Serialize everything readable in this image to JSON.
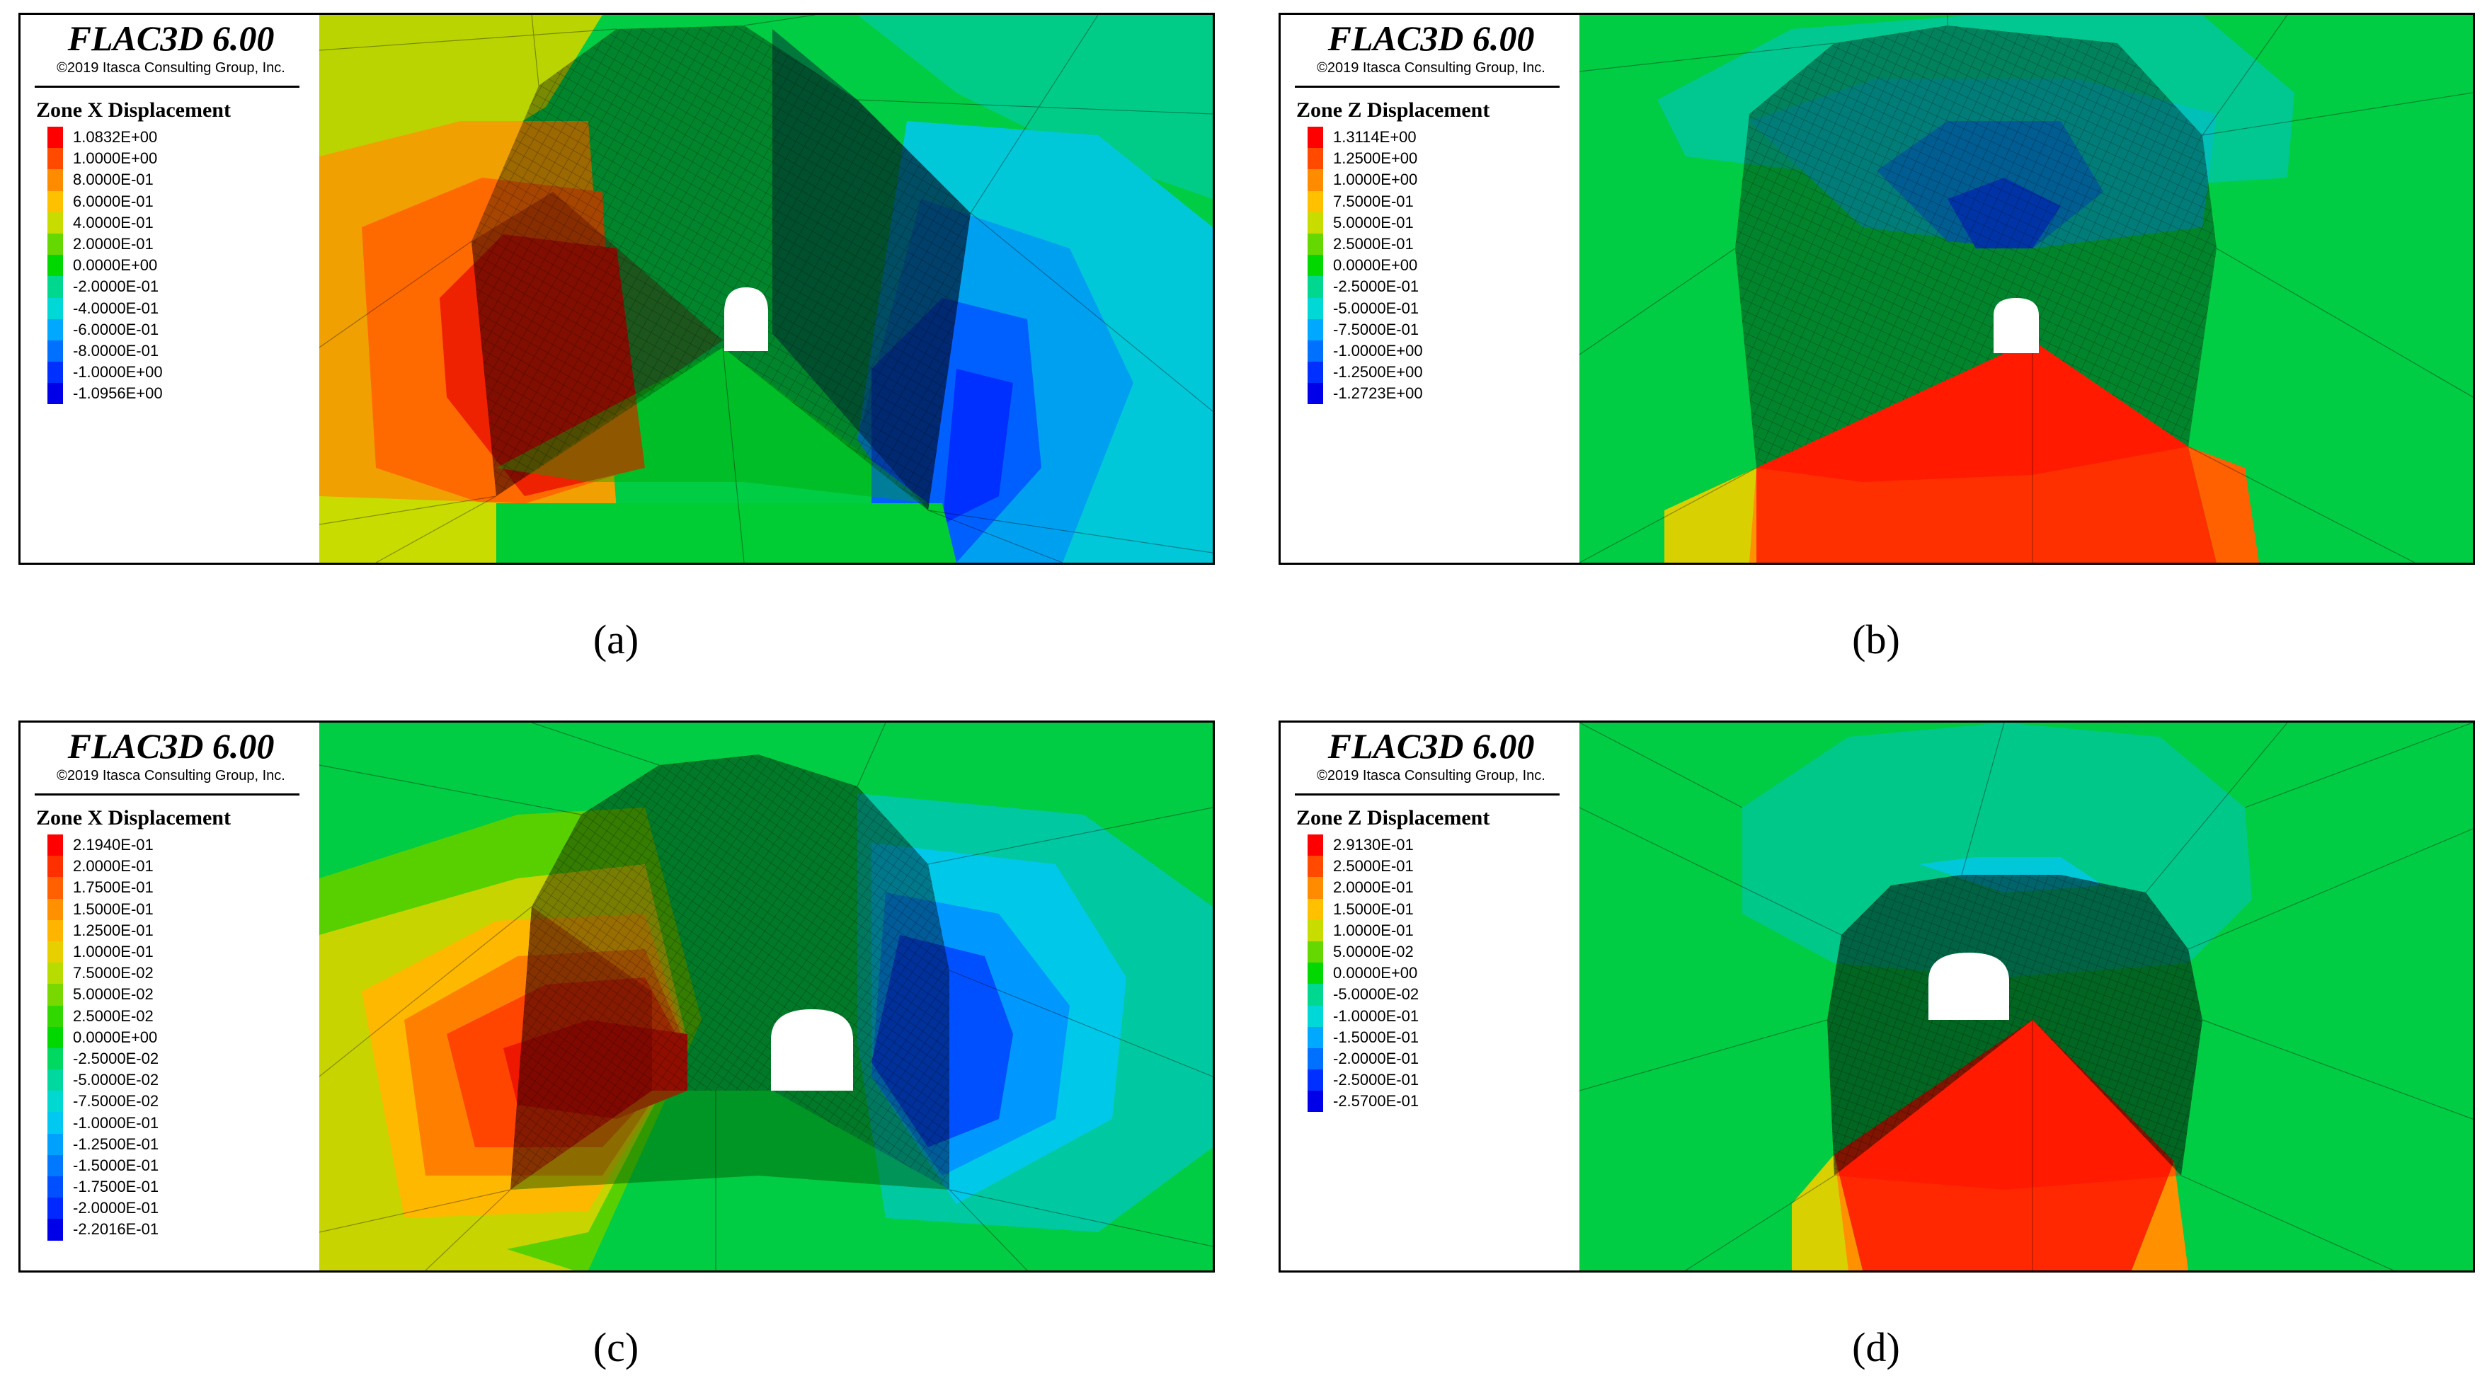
{
  "software": "FLAC3D 6.00",
  "copyright": "©2019 Itasca Consulting Group, Inc.",
  "panels": [
    {
      "caption": "(a)",
      "legend_title": "Zone X Displacement",
      "entries": [
        {
          "value": "1.0832E+00",
          "color": "#ff0000"
        },
        {
          "value": "1.0000E+00",
          "color": "#ff4a00"
        },
        {
          "value": "8.0000E-01",
          "color": "#ff8c00"
        },
        {
          "value": "6.0000E-01",
          "color": "#ffc000"
        },
        {
          "value": "4.0000E-01",
          "color": "#c8dc00"
        },
        {
          "value": "2.0000E-01",
          "color": "#64d800"
        },
        {
          "value": "0.0000E+00",
          "color": "#00d800"
        },
        {
          "value": "-2.0000E-01",
          "color": "#00d890"
        },
        {
          "value": "-4.0000E-01",
          "color": "#00d8d8"
        },
        {
          "value": "-6.0000E-01",
          "color": "#00a8ff"
        },
        {
          "value": "-8.0000E-01",
          "color": "#0070ff"
        },
        {
          "value": "-1.0000E+00",
          "color": "#0030ff"
        },
        {
          "value": "-1.0956E+00",
          "color": "#0000e8"
        }
      ]
    },
    {
      "caption": "(b)",
      "legend_title": "Zone Z Displacement",
      "entries": [
        {
          "value": "1.3114E+00",
          "color": "#ff0000"
        },
        {
          "value": "1.2500E+00",
          "color": "#ff4a00"
        },
        {
          "value": "1.0000E+00",
          "color": "#ff8c00"
        },
        {
          "value": "7.5000E-01",
          "color": "#ffc000"
        },
        {
          "value": "5.0000E-01",
          "color": "#c8dc00"
        },
        {
          "value": "2.5000E-01",
          "color": "#64d800"
        },
        {
          "value": "0.0000E+00",
          "color": "#00d800"
        },
        {
          "value": "-2.5000E-01",
          "color": "#00d890"
        },
        {
          "value": "-5.0000E-01",
          "color": "#00d8d8"
        },
        {
          "value": "-7.5000E-01",
          "color": "#00a8ff"
        },
        {
          "value": "-1.0000E+00",
          "color": "#0070ff"
        },
        {
          "value": "-1.2500E+00",
          "color": "#0030ff"
        },
        {
          "value": "-1.2723E+00",
          "color": "#0000e8"
        }
      ]
    },
    {
      "caption": "(c)",
      "legend_title": "Zone X Displacement",
      "entries": [
        {
          "value": "2.1940E-01",
          "color": "#ff0000"
        },
        {
          "value": "2.0000E-01",
          "color": "#ff3000"
        },
        {
          "value": "1.7500E-01",
          "color": "#ff6000"
        },
        {
          "value": "1.5000E-01",
          "color": "#ff9000"
        },
        {
          "value": "1.2500E-01",
          "color": "#ffb400"
        },
        {
          "value": "1.0000E-01",
          "color": "#e8d000"
        },
        {
          "value": "7.5000E-02",
          "color": "#b8dc00"
        },
        {
          "value": "5.0000E-02",
          "color": "#78d800"
        },
        {
          "value": "2.5000E-02",
          "color": "#30d800"
        },
        {
          "value": "0.0000E+00",
          "color": "#00d800"
        },
        {
          "value": "-2.5000E-02",
          "color": "#00d860"
        },
        {
          "value": "-5.0000E-02",
          "color": "#00d8a0"
        },
        {
          "value": "-7.5000E-02",
          "color": "#00d8d0"
        },
        {
          "value": "-1.0000E-01",
          "color": "#00c8f0"
        },
        {
          "value": "-1.2500E-01",
          "color": "#00a0ff"
        },
        {
          "value": "-1.5000E-01",
          "color": "#0078ff"
        },
        {
          "value": "-1.7500E-01",
          "color": "#0050ff"
        },
        {
          "value": "-2.0000E-01",
          "color": "#0028ff"
        },
        {
          "value": "-2.2016E-01",
          "color": "#0000e8"
        }
      ]
    },
    {
      "caption": "(d)",
      "legend_title": "Zone Z Displacement",
      "entries": [
        {
          "value": "2.9130E-01",
          "color": "#ff0000"
        },
        {
          "value": "2.5000E-01",
          "color": "#ff4a00"
        },
        {
          "value": "2.0000E-01",
          "color": "#ff8c00"
        },
        {
          "value": "1.5000E-01",
          "color": "#ffc000"
        },
        {
          "value": "1.0000E-01",
          "color": "#c8dc00"
        },
        {
          "value": "5.0000E-02",
          "color": "#64d800"
        },
        {
          "value": "0.0000E+00",
          "color": "#00d800"
        },
        {
          "value": "-5.0000E-02",
          "color": "#00d890"
        },
        {
          "value": "-1.0000E-01",
          "color": "#00d8d8"
        },
        {
          "value": "-1.5000E-01",
          "color": "#00a8ff"
        },
        {
          "value": "-2.0000E-01",
          "color": "#0070ff"
        },
        {
          "value": "-2.5000E-01",
          "color": "#0030ff"
        },
        {
          "value": "-2.5700E-01",
          "color": "#0000e8"
        }
      ]
    }
  ]
}
